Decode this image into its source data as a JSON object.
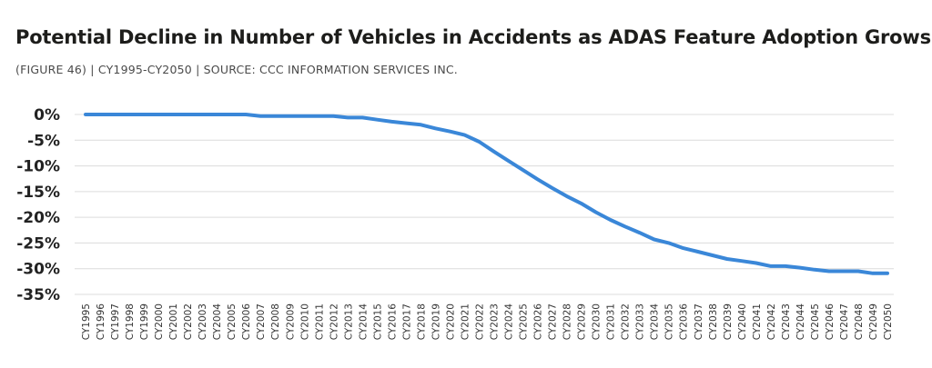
{
  "title": "Potential Decline in Number of Vehicles in Accidents as ADAS Feature Adoption Grows",
  "subtitle": "(FIGURE 46)  |  CY1995-CY2050  |  SOURCE: CCC INFORMATION SERVICES INC.",
  "colors": {
    "line": "#3a87d8",
    "grid": "#dcdcdc",
    "text": "#222222"
  },
  "chart_data": {
    "type": "line",
    "title": "Potential Decline in Number of Vehicles in Accidents as ADAS Feature Adoption Grows",
    "xlabel": "",
    "ylabel": "",
    "ylim": [
      -35,
      0
    ],
    "y_ticks": [
      0,
      -5,
      -10,
      -15,
      -20,
      -25,
      -30,
      -35
    ],
    "y_tick_labels": [
      "0%",
      "-5%",
      "-10%",
      "-15%",
      "-20%",
      "-25%",
      "-30%",
      "-35%"
    ],
    "grid": true,
    "legend": "none",
    "categories": [
      "CY1995",
      "CY1996",
      "CY1997",
      "CY1998",
      "CY1999",
      "CY2000",
      "CY2001",
      "CY2002",
      "CY2003",
      "CY2004",
      "CY2005",
      "CY2006",
      "CY2007",
      "CY2008",
      "CY2009",
      "CY2010",
      "CY2011",
      "CY2012",
      "CY2013",
      "CY2014",
      "CY2015",
      "CY2016",
      "CY2017",
      "CY2018",
      "CY2019",
      "CY2020",
      "CY2021",
      "CY2022",
      "CY2023",
      "CY2024",
      "CY2025",
      "CY2026",
      "CY2027",
      "CY2028",
      "CY2029",
      "CY2030",
      "CY2031",
      "CY2032",
      "CY2033",
      "CY2034",
      "CY2035",
      "CY2036",
      "CY2037",
      "CY2038",
      "CY2039",
      "CY2040",
      "CY2041",
      "CY2042",
      "CY2043",
      "CY2044",
      "CY2045",
      "CY2046",
      "CY2047",
      "CY2048",
      "CY2049",
      "CY2050"
    ],
    "series": [
      {
        "values": [
          0,
          0,
          0,
          0,
          0,
          0,
          0,
          0,
          0,
          0,
          0,
          0,
          -0.3,
          -0.3,
          -0.3,
          -0.3,
          -0.3,
          -0.3,
          -0.6,
          -0.6,
          -1.0,
          -1.4,
          -1.7,
          -2.0,
          -2.7,
          -3.3,
          -4.0,
          -5.3,
          -7.2,
          -9.0,
          -10.8,
          -12.6,
          -14.3,
          -15.9,
          -17.3,
          -19.0,
          -20.5,
          -21.8,
          -23.0,
          -24.3,
          -25.0,
          -26.0,
          -26.7,
          -27.4,
          -28.1,
          -28.5,
          -28.9,
          -29.5,
          -29.5,
          -29.8,
          -30.2,
          -30.5,
          -30.5,
          -30.5,
          -30.9,
          -30.9
        ]
      }
    ]
  }
}
